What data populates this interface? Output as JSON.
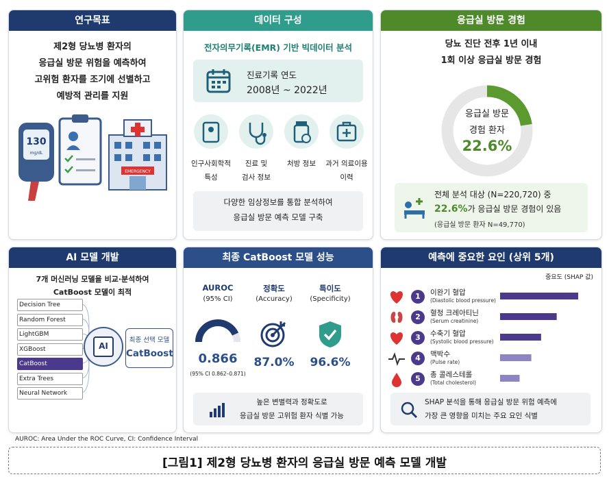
{
  "research_goal": {
    "title": "연구목표",
    "text": [
      "제2형 당뇨병 환자의",
      "응급실 방문 위험을 예측하여",
      "고위험 환자를 조기에 선별하고",
      "예방적 관리를 지원"
    ],
    "illustration": {
      "glucose": "130",
      "unit": "mg/dL",
      "sign": "EMERGENCY"
    }
  },
  "data_sources": {
    "title": "데이터 구성",
    "subtitle": "전자의무기록(EMR) 기반 빅데이터 분석",
    "period_label": "진료기록 연도",
    "period": "2008년 ~ 2022년",
    "items": [
      [
        "인구사회학적",
        "특성"
      ],
      [
        "진료 및",
        "검사 정보"
      ],
      [
        "처방 정보"
      ],
      [
        "과거 의료이용",
        "이력"
      ]
    ],
    "note": [
      "다양한 임상정보를 통합 분석하여",
      "응급실 방문 예측 모델 구축"
    ]
  },
  "er_visit": {
    "title": "응급실 방문 경험",
    "subtitle": [
      "당뇨 진단 전후 1년 이내",
      "1회 이상 응급실 방문 경험"
    ],
    "donut_label": [
      "응급실 방문",
      "경험 환자"
    ],
    "rate": {
      "value": 22.6,
      "label": "22.6%"
    },
    "summary": {
      "total": "전체 분석 대상 (N=220,720) 중",
      "rate": "22.6%",
      "rest": "가 응급실 방문 경험이 있음",
      "count": "(응급실 방문 환자 N=49,770)"
    }
  },
  "ai_model": {
    "title": "AI 모델 개발",
    "text": [
      "7개 머신러닝 모델을 비교·분석하여",
      "CatBoost 모델이 최적"
    ],
    "models": [
      "Decision Tree",
      "Random Forest",
      "LightGBM",
      "XGBoost",
      "CatBoost",
      "Extra Trees",
      "Neural Network"
    ],
    "chip": "AI",
    "final_label": "최종 선택 모델",
    "final_model": "CatBoost"
  },
  "performance": {
    "title": "최종 CatBoost 모델 성능",
    "metrics": [
      {
        "name": "AUROC",
        "sub": "(95% CI)",
        "value": 0.866,
        "note": "(95% CI 0.862–0.871)"
      },
      {
        "name": "정확도",
        "sub": "(Accuracy)",
        "value": {
          "value": 87.0,
          "label": "87.0%"
        }
      },
      {
        "name": "특이도",
        "sub": "(Specificity)",
        "value": {
          "value": 96.6,
          "label": "96.6%"
        }
      }
    ],
    "note": [
      "높은 변별력과 정확도로",
      "응급실 방문 고위험 환자 식별 가능"
    ]
  },
  "factors": {
    "title": "예측에 중요한 요인 (상위 5개)",
    "axis_label": "중요도 (SHAP 값)",
    "items": [
      {
        "rank": 1,
        "name": "이완기 혈압",
        "en": "(Diastolic blood pressure)",
        "importance": 0.4,
        "color": "#4b3a8c"
      },
      {
        "rank": 2,
        "name": "혈청 크레아티닌",
        "en": "(Serum creatinine)",
        "importance": 0.29,
        "color": "#4b3a8c"
      },
      {
        "rank": 3,
        "name": "수축기 혈압",
        "en": "(Systolic blood pressure)",
        "importance": 0.21,
        "color": "#4b3a8c"
      },
      {
        "rank": 4,
        "name": "맥박수",
        "en": "(Pulse rate)",
        "importance": 0.16,
        "color": "#8d84c4"
      },
      {
        "rank": 5,
        "name": "총 콜레스테롤",
        "en": "(Total cholesterol)",
        "importance": 0.1,
        "color": "#8d84c4"
      }
    ],
    "note": [
      "SHAP 분석을 통해 응급실 방문 위험 예측에",
      "가장 큰 영향을 미치는 주요 요인 식별"
    ]
  },
  "footnote": "AUROC: Area Under the ROC Curve, CI: Confidence Interval",
  "caption": "[그림1] 제2형 당뇨병 환자의 응급실 방문 예측 모델 개발"
}
